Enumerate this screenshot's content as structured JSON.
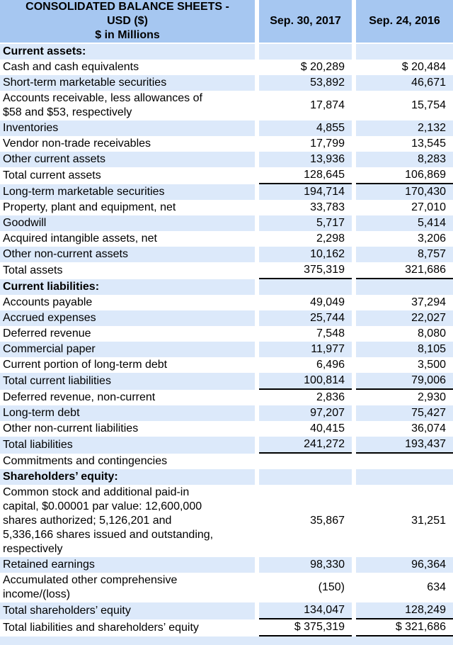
{
  "colors": {
    "header_bg": "#a6c7f1",
    "stripe_bg": "#dce9fa",
    "row_bg": "#ffffff",
    "text": "#000000",
    "total_rule": "#000000"
  },
  "header": {
    "title_lines": [
      "CONSOLIDATED BALANCE SHEETS -",
      "USD ($)",
      "$ in Millions"
    ],
    "columns": [
      "Sep. 30, 2017",
      "Sep. 24, 2016"
    ]
  },
  "rows": [
    {
      "label": "Current assets:",
      "v2017": "",
      "v2016": "",
      "bold": true
    },
    {
      "label": "Cash and cash equivalents",
      "v2017": "$ 20,289",
      "v2016": "$ 20,484"
    },
    {
      "label": "Short-term marketable securities",
      "v2017": "53,892",
      "v2016": "46,671"
    },
    {
      "label": [
        "Accounts receivable, less allowances of",
        "$58 and $53, respectively"
      ],
      "v2017": "17,874",
      "v2016": "15,754"
    },
    {
      "label": "Inventories",
      "v2017": "4,855",
      "v2016": "2,132"
    },
    {
      "label": "Vendor non-trade receivables",
      "v2017": "17,799",
      "v2016": "13,545"
    },
    {
      "label": "Other current assets",
      "v2017": "13,936",
      "v2016": "8,283"
    },
    {
      "label": "Total current assets",
      "v2017": "128,645",
      "v2016": "106,869",
      "underline": true
    },
    {
      "label": "Long-term marketable securities",
      "v2017": "194,714",
      "v2016": "170,430"
    },
    {
      "label": "Property, plant and equipment, net",
      "v2017": "33,783",
      "v2016": "27,010"
    },
    {
      "label": "Goodwill",
      "v2017": "5,717",
      "v2016": "5,414"
    },
    {
      "label": "Acquired intangible assets, net",
      "v2017": "2,298",
      "v2016": "3,206"
    },
    {
      "label": "Other non-current assets",
      "v2017": "10,162",
      "v2016": "8,757"
    },
    {
      "label": "Total assets",
      "v2017": "375,319",
      "v2016": "321,686",
      "underline": true
    },
    {
      "label": "Current liabilities:",
      "v2017": "",
      "v2016": "",
      "bold": true
    },
    {
      "label": "Accounts payable",
      "v2017": "49,049",
      "v2016": "37,294"
    },
    {
      "label": "Accrued expenses",
      "v2017": "25,744",
      "v2016": "22,027"
    },
    {
      "label": "Deferred revenue",
      "v2017": "7,548",
      "v2016": "8,080"
    },
    {
      "label": "Commercial paper",
      "v2017": "11,977",
      "v2016": "8,105"
    },
    {
      "label": "Current portion of long-term debt",
      "v2017": "6,496",
      "v2016": "3,500"
    },
    {
      "label": "Total current liabilities",
      "v2017": "100,814",
      "v2016": "79,006",
      "underline": true
    },
    {
      "label": "Deferred revenue, non-current",
      "v2017": "2,836",
      "v2016": "2,930"
    },
    {
      "label": "Long-term debt",
      "v2017": "97,207",
      "v2016": "75,427"
    },
    {
      "label": "Other non-current liabilities",
      "v2017": "40,415",
      "v2016": "36,074"
    },
    {
      "label": "Total liabilities",
      "v2017": "241,272",
      "v2016": "193,437",
      "underline": true
    },
    {
      "label": "Commitments and contingencies",
      "v2017": "",
      "v2016": ""
    },
    {
      "label": "Shareholders’ equity:",
      "v2017": "",
      "v2016": "",
      "bold": true
    },
    {
      "label": [
        "Common stock and additional paid-in",
        "capital, $0.00001 par value: 12,600,000",
        "shares authorized; 5,126,201 and",
        "5,336,166 shares issued and outstanding,",
        "respectively"
      ],
      "v2017": "35,867",
      "v2016": "31,251"
    },
    {
      "label": "Retained earnings",
      "v2017": "98,330",
      "v2016": "96,364"
    },
    {
      "label": [
        "Accumulated other comprehensive",
        "income/(loss)"
      ],
      "v2017": "(150)",
      "v2016": "634"
    },
    {
      "label": "Total shareholders’ equity",
      "v2017": "134,047",
      "v2016": "128,249",
      "underline": true
    },
    {
      "label": "Total liabilities and shareholders’ equity",
      "v2017": "$ 375,319",
      "v2016": "$ 321,686",
      "underline": true
    }
  ]
}
